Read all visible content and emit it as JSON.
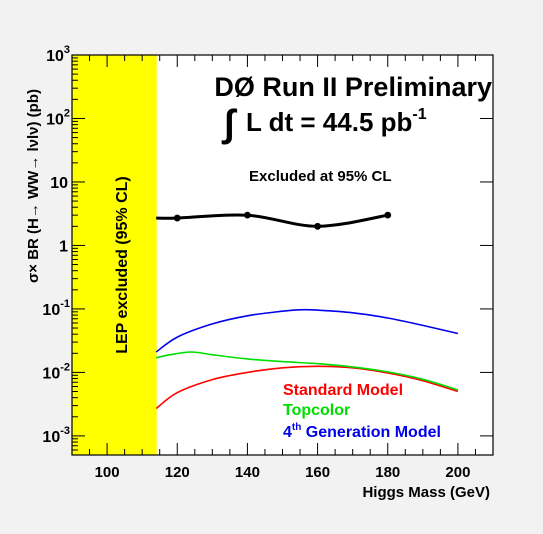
{
  "chart_data": {
    "type": "line",
    "title": "DØ Run II Preliminary",
    "luminosity": {
      "prefix": "L dt = 44.5 pb",
      "exponent": "-1"
    },
    "subtitle": "Excluded at 95% CL",
    "xlabel": "Higgs Mass (GeV)",
    "ylabel": "σ× BR (H→ WW→ lνlν) (pb)",
    "xlim": [
      90,
      210
    ],
    "ylim": [
      0.0005,
      1000
    ],
    "yscale": "log",
    "x_ticks": [
      {
        "value": 100,
        "label": "100"
      },
      {
        "value": 120,
        "label": "120"
      },
      {
        "value": 140,
        "label": "140"
      },
      {
        "value": 160,
        "label": "160"
      },
      {
        "value": 180,
        "label": "180"
      },
      {
        "value": 200,
        "label": "200"
      }
    ],
    "y_ticks": [
      {
        "value": 0.001,
        "base": "10",
        "exp": "-3"
      },
      {
        "value": 0.01,
        "base": "10",
        "exp": "-2"
      },
      {
        "value": 0.1,
        "base": "10",
        "exp": "-1"
      },
      {
        "value": 1,
        "base": "1",
        "exp": ""
      },
      {
        "value": 10,
        "base": "10",
        "exp": ""
      },
      {
        "value": 100,
        "base": "10",
        "exp": "2"
      },
      {
        "value": 1000,
        "base": "10",
        "exp": "3"
      }
    ],
    "lep_band": {
      "x_range": [
        90,
        114
      ],
      "label": "LEP excluded (95% CL)",
      "color": "#ffff00"
    },
    "excluded_limit": {
      "color": "#000000",
      "x": [
        114,
        120,
        140,
        160,
        180
      ],
      "y": [
        2.7,
        2.7,
        3.0,
        2.0,
        3.0
      ],
      "markers_x": [
        120,
        140,
        160,
        180
      ],
      "markers_y": [
        2.7,
        3.0,
        2.0,
        3.0
      ]
    },
    "series": [
      {
        "name": "Standard Model",
        "color": "#ff0000",
        "x": [
          114,
          120,
          130,
          140,
          150,
          160,
          170,
          180,
          190,
          200
        ],
        "y": [
          0.0027,
          0.0048,
          0.0077,
          0.01,
          0.0118,
          0.0125,
          0.0118,
          0.0098,
          0.0074,
          0.005
        ]
      },
      {
        "name": "Topcolor",
        "color": "#00dd00",
        "x": [
          114,
          118,
          124,
          130,
          140,
          150,
          160,
          170,
          180,
          190,
          200
        ],
        "y": [
          0.017,
          0.019,
          0.021,
          0.019,
          0.0163,
          0.0148,
          0.0137,
          0.0122,
          0.0102,
          0.0078,
          0.0053
        ]
      },
      {
        "name": "4th Generation Model",
        "label_base": "4",
        "label_sup": "th",
        "label_rest": " Generation Model",
        "color": "#0000ee",
        "x": [
          114,
          120,
          130,
          140,
          150,
          155,
          160,
          170,
          180,
          190,
          200
        ],
        "y": [
          0.021,
          0.036,
          0.058,
          0.078,
          0.092,
          0.097,
          0.096,
          0.087,
          0.072,
          0.055,
          0.041
        ]
      }
    ]
  }
}
